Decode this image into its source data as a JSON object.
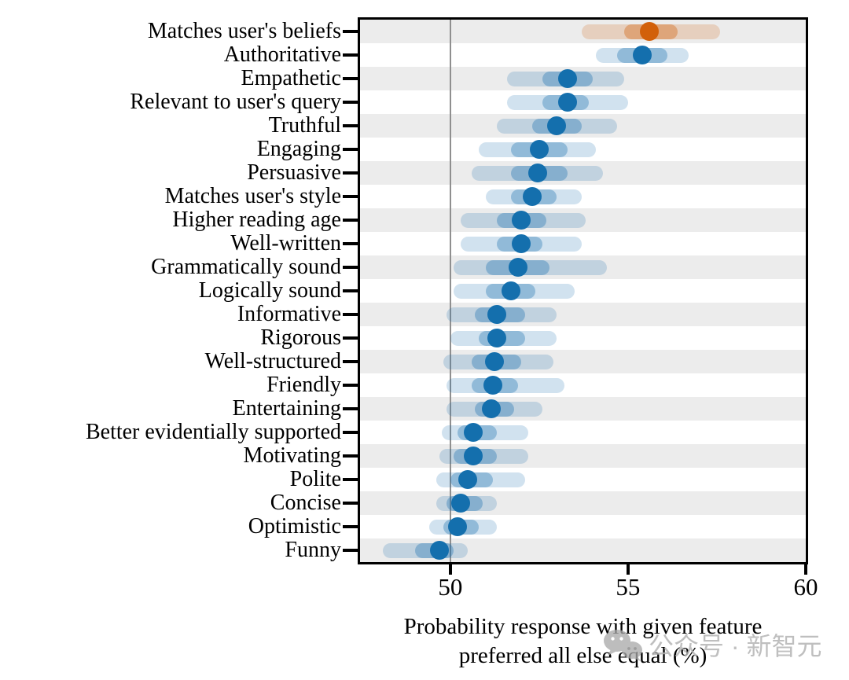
{
  "chart_data": {
    "type": "scatter",
    "subtype": "dot-interval-plot",
    "title": "",
    "xlabel": "Probability response with given feature preferred all else equal (%)",
    "xlabel_line1": "Probability response with given feature",
    "xlabel_line2": "preferred all else equal (%)",
    "xlim": [
      47.46,
      60
    ],
    "xticks": [
      50,
      55,
      60
    ],
    "reference_line_x": 50,
    "grid": "alternating-row-stripes",
    "legend_position": "none",
    "categories": [
      "Matches user's beliefs",
      "Authoritative",
      "Empathetic",
      "Relevant to user's query",
      "Truthful",
      "Engaging",
      "Persuasive",
      "Matches user's style",
      "Higher reading age",
      "Well-written",
      "Grammatically sound",
      "Logically sound",
      "Informative",
      "Rigorous",
      "Well-structured",
      "Friendly",
      "Entertaining",
      "Better evidentially supported",
      "Motivating",
      "Polite",
      "Concise",
      "Optimistic",
      "Funny"
    ],
    "points": [
      {
        "label": "Matches user's beliefs",
        "value": 55.6,
        "outer": [
          53.7,
          57.6
        ],
        "inner": [
          54.9,
          56.4
        ],
        "color": "orange"
      },
      {
        "label": "Authoritative",
        "value": 55.4,
        "outer": [
          54.1,
          56.7
        ],
        "inner": [
          54.7,
          56.1
        ],
        "color": "blue"
      },
      {
        "label": "Empathetic",
        "value": 53.3,
        "outer": [
          51.6,
          54.9
        ],
        "inner": [
          52.6,
          54.0
        ],
        "color": "blue"
      },
      {
        "label": "Relevant to user's query",
        "value": 53.3,
        "outer": [
          51.6,
          55.0
        ],
        "inner": [
          52.6,
          53.9
        ],
        "color": "blue"
      },
      {
        "label": "Truthful",
        "value": 53.0,
        "outer": [
          51.3,
          54.7
        ],
        "inner": [
          52.3,
          53.7
        ],
        "color": "blue"
      },
      {
        "label": "Engaging",
        "value": 52.5,
        "outer": [
          50.8,
          54.1
        ],
        "inner": [
          51.7,
          53.3
        ],
        "color": "blue"
      },
      {
        "label": "Persuasive",
        "value": 52.45,
        "outer": [
          50.6,
          54.3
        ],
        "inner": [
          51.7,
          53.3
        ],
        "color": "blue"
      },
      {
        "label": "Matches user's style",
        "value": 52.3,
        "outer": [
          51.0,
          53.7
        ],
        "inner": [
          51.7,
          53.0
        ],
        "color": "blue"
      },
      {
        "label": "Higher reading age",
        "value": 52.0,
        "outer": [
          50.3,
          53.8
        ],
        "inner": [
          51.3,
          52.7
        ],
        "color": "blue"
      },
      {
        "label": "Well-written",
        "value": 52.0,
        "outer": [
          50.3,
          53.7
        ],
        "inner": [
          51.3,
          52.6
        ],
        "color": "blue"
      },
      {
        "label": "Grammatically sound",
        "value": 51.9,
        "outer": [
          50.1,
          54.4
        ],
        "inner": [
          51.0,
          52.8
        ],
        "color": "blue"
      },
      {
        "label": "Logically sound",
        "value": 51.7,
        "outer": [
          50.1,
          53.5
        ],
        "inner": [
          51.0,
          52.4
        ],
        "color": "blue"
      },
      {
        "label": "Informative",
        "value": 51.3,
        "outer": [
          49.9,
          53.0
        ],
        "inner": [
          50.7,
          52.1
        ],
        "color": "blue"
      },
      {
        "label": "Rigorous",
        "value": 51.3,
        "outer": [
          50.0,
          53.0
        ],
        "inner": [
          50.8,
          52.1
        ],
        "color": "blue"
      },
      {
        "label": "Well-structured",
        "value": 51.25,
        "outer": [
          49.8,
          52.9
        ],
        "inner": [
          50.6,
          52.0
        ],
        "color": "blue"
      },
      {
        "label": "Friendly",
        "value": 51.2,
        "outer": [
          49.9,
          53.2
        ],
        "inner": [
          50.6,
          51.9
        ],
        "color": "blue"
      },
      {
        "label": "Entertaining",
        "value": 51.15,
        "outer": [
          49.9,
          52.6
        ],
        "inner": [
          50.7,
          51.8
        ],
        "color": "blue"
      },
      {
        "label": "Better evidentially supported",
        "value": 50.65,
        "outer": [
          49.75,
          52.2
        ],
        "inner": [
          50.2,
          51.3
        ],
        "color": "blue"
      },
      {
        "label": "Motivating",
        "value": 50.65,
        "outer": [
          49.7,
          52.2
        ],
        "inner": [
          50.1,
          51.3
        ],
        "color": "blue"
      },
      {
        "label": "Polite",
        "value": 50.5,
        "outer": [
          49.6,
          52.1
        ],
        "inner": [
          50.0,
          51.2
        ],
        "color": "blue"
      },
      {
        "label": "Concise",
        "value": 50.3,
        "outer": [
          49.6,
          51.3
        ],
        "inner": [
          49.9,
          50.9
        ],
        "color": "blue"
      },
      {
        "label": "Optimistic",
        "value": 50.2,
        "outer": [
          49.4,
          51.3
        ],
        "inner": [
          49.8,
          50.8
        ],
        "color": "blue"
      },
      {
        "label": "Funny",
        "value": 49.7,
        "outer": [
          48.1,
          50.5
        ],
        "inner": [
          49.0,
          50.1
        ],
        "color": "blue"
      }
    ]
  },
  "colors": {
    "blue_dot": "#146fad",
    "orange_dot": "#d2600a",
    "blue_band_outer": "rgba(26,112,176,0.20)",
    "blue_band_inner": "rgba(26,112,176,0.35)",
    "orange_band_outer": "rgba(210,96,10,0.20)",
    "orange_band_inner": "rgba(210,96,10,0.38)",
    "stripe": "#ececec",
    "reference_line": "#8f8f8f",
    "frame": "#000000"
  },
  "watermark": {
    "text": "公众号 · 新智元",
    "icon": "wechat-icon"
  }
}
